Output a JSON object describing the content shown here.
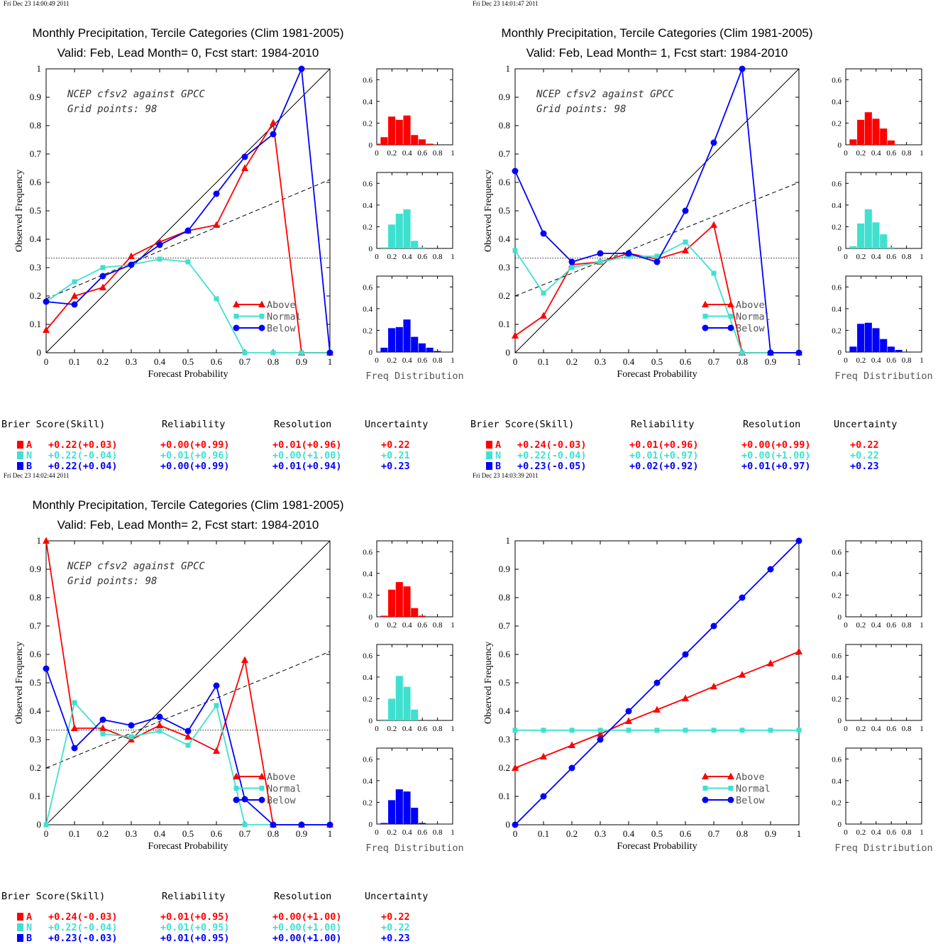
{
  "panels": [
    {
      "timestamp": "Fri Dec 23 14:00:49 2011",
      "title1": "Monthly Precipitation, Tercile Categories (Clim 1981-2005)",
      "title2": "Valid: Feb, Lead Month= 0, Fcst start: 1984-2010",
      "annotation1": "NCEP cfsv2 against GPCC",
      "annotation2": "Grid points:   98",
      "xlabel": "Forecast Probability",
      "ylabel": "Observed Frequency",
      "hist_label": "Freq Distribution",
      "legend": [
        "Above",
        "Normal",
        "Below"
      ],
      "reliability": {
        "x": [
          0,
          0.1,
          0.2,
          0.3,
          0.4,
          0.5,
          0.6,
          0.7,
          0.8,
          0.9,
          1.0
        ],
        "above": [
          0.08,
          0.2,
          0.23,
          0.34,
          0.39,
          0.43,
          0.45,
          0.65,
          0.81,
          0.0,
          0.0
        ],
        "normal": [
          0.18,
          0.25,
          0.3,
          0.31,
          0.33,
          0.32,
          0.19,
          0.0,
          0.0,
          0.0,
          0.0
        ],
        "below": [
          0.18,
          0.17,
          0.27,
          0.31,
          0.38,
          0.43,
          0.56,
          0.69,
          0.77,
          1.0,
          0.0
        ],
        "fit": [
          0.19,
          0.61
        ]
      },
      "histograms": {
        "above": [
          0.01,
          0.07,
          0.26,
          0.23,
          0.27,
          0.09,
          0.05,
          0.01,
          0,
          0,
          0
        ],
        "normal": [
          0.0,
          0.01,
          0.22,
          0.32,
          0.36,
          0.07,
          0.01,
          0,
          0,
          0,
          0
        ],
        "below": [
          0.0,
          0.04,
          0.22,
          0.23,
          0.3,
          0.14,
          0.08,
          0.04,
          0.01,
          0,
          0
        ]
      },
      "stats": {
        "headers": [
          "Brier Score(Skill)",
          "Reliability",
          "Resolution",
          "Uncertainty"
        ],
        "rows": [
          {
            "tag": "A",
            "brier": "+0.22(+0.03)",
            "rel": "+0.00(+0.99)",
            "res": "+0.01(+0.96)",
            "unc": "+0.22"
          },
          {
            "tag": "N",
            "brier": "+0.22(-0.04)",
            "rel": "+0.01(+0.96)",
            "res": "+0.00(+1.00)",
            "unc": "+0.21"
          },
          {
            "tag": "B",
            "brier": "+0.22(+0.04)",
            "rel": "+0.00(+0.99)",
            "res": "+0.01(+0.94)",
            "unc": "+0.23"
          }
        ]
      }
    },
    {
      "timestamp": "Fri Dec 23 14:01:47 2011",
      "title1": "Monthly Precipitation, Tercile Categories (Clim 1981-2005)",
      "title2": "Valid: Feb, Lead Month= 1, Fcst start: 1984-2010",
      "annotation1": "NCEP cfsv2 against GPCC",
      "annotation2": "Grid points:   98",
      "xlabel": "Forecast Probability",
      "ylabel": "Observed Frequency",
      "hist_label": "Freq Distribution",
      "legend": [
        "Above",
        "Normal",
        "Below"
      ],
      "reliability": {
        "x": [
          0,
          0.1,
          0.2,
          0.3,
          0.4,
          0.5,
          0.6,
          0.7,
          0.8,
          0.9,
          1.0
        ],
        "above": [
          0.06,
          0.13,
          0.31,
          0.32,
          0.35,
          0.33,
          0.36,
          0.45,
          0.0,
          0.0,
          0.0
        ],
        "normal": [
          0.36,
          0.21,
          0.3,
          0.32,
          0.34,
          0.34,
          0.39,
          0.28,
          0.0,
          0.0,
          0.0
        ],
        "below": [
          0.64,
          0.42,
          0.32,
          0.35,
          0.35,
          0.32,
          0.5,
          0.74,
          1.0,
          0.0,
          0.0
        ],
        "fit": [
          0.2,
          0.6
        ]
      },
      "histograms": {
        "above": [
          0.0,
          0.05,
          0.23,
          0.3,
          0.24,
          0.15,
          0.04,
          0.0,
          0,
          0,
          0
        ],
        "normal": [
          0.0,
          0.02,
          0.23,
          0.36,
          0.24,
          0.13,
          0.01,
          0,
          0,
          0,
          0
        ],
        "below": [
          0.0,
          0.05,
          0.26,
          0.27,
          0.22,
          0.12,
          0.05,
          0.02,
          0,
          0,
          0
        ]
      },
      "stats": {
        "headers": [
          "Brier Score(Skill)",
          "Reliability",
          "Resolution",
          "Uncertainty"
        ],
        "rows": [
          {
            "tag": "A",
            "brier": "+0.24(-0.03)",
            "rel": "+0.01(+0.96)",
            "res": "+0.00(+0.99)",
            "unc": "+0.22"
          },
          {
            "tag": "N",
            "brier": "+0.22(-0.04)",
            "rel": "+0.01(+0.97)",
            "res": "+0.00(+1.00)",
            "unc": "+0.22"
          },
          {
            "tag": "B",
            "brier": "+0.23(-0.05)",
            "rel": "+0.02(+0.92)",
            "res": "+0.01(+0.97)",
            "unc": "+0.23"
          }
        ]
      }
    },
    {
      "timestamp": "Fri Dec 23 14:02:44 2011",
      "title1": "Monthly Precipitation, Tercile Categories (Clim 1981-2005)",
      "title2": "Valid: Feb, Lead Month= 2, Fcst start: 1984-2010",
      "annotation1": "NCEP cfsv2 against GPCC",
      "annotation2": "Grid points:   98",
      "xlabel": "Forecast Probability",
      "ylabel": "Observed Frequency",
      "hist_label": "Freq Distribution",
      "legend": [
        "Above",
        "Normal",
        "Below"
      ],
      "reliability": {
        "x": [
          0,
          0.1,
          0.2,
          0.3,
          0.4,
          0.5,
          0.6,
          0.7,
          0.8,
          0.9,
          1.0
        ],
        "above": [
          1.0,
          0.34,
          0.34,
          0.3,
          0.35,
          0.31,
          0.26,
          0.58,
          0.0,
          0.0,
          0.0
        ],
        "normal": [
          0.0,
          0.43,
          0.32,
          0.31,
          0.33,
          0.28,
          0.42,
          0.0,
          0.0,
          0.0,
          0.0
        ],
        "below": [
          0.55,
          0.27,
          0.37,
          0.35,
          0.38,
          0.33,
          0.49,
          0.09,
          0.0,
          0.0,
          0.0
        ],
        "fit": [
          0.2,
          0.61
        ]
      },
      "histograms": {
        "above": [
          0.0,
          0.01,
          0.25,
          0.32,
          0.28,
          0.08,
          0.01,
          0.0,
          0,
          0,
          0
        ],
        "normal": [
          0.0,
          0.01,
          0.2,
          0.41,
          0.31,
          0.1,
          0.0,
          0,
          0,
          0,
          0
        ],
        "below": [
          0.0,
          0.01,
          0.22,
          0.32,
          0.3,
          0.15,
          0.01,
          0.0,
          0,
          0,
          0
        ]
      },
      "stats": {
        "headers": [
          "Brier Score(Skill)",
          "Reliability",
          "Resolution",
          "Uncertainty"
        ],
        "rows": [
          {
            "tag": "A",
            "brier": "+0.24(-0.03)",
            "rel": "+0.01(+0.95)",
            "res": "+0.00(+1.00)",
            "unc": "+0.22"
          },
          {
            "tag": "N",
            "brier": "+0.22(-0.04)",
            "rel": "+0.01(+0.95)",
            "res": "+0.00(+1.00)",
            "unc": "+0.22"
          },
          {
            "tag": "B",
            "brier": "+0.23(-0.03)",
            "rel": "+0.01(+0.95)",
            "res": "+0.00(+1.00)",
            "unc": "+0.23"
          }
        ]
      }
    },
    {
      "timestamp": "Fri Dec 23 14:03:39 2011",
      "title1": "",
      "title2": "",
      "annotation1": "",
      "annotation2": "",
      "xlabel": "Forecast Probability",
      "ylabel": "Observed Frequency",
      "hist_label": "Freq Distribution",
      "legend": [
        "Above",
        "Normal",
        "Below"
      ],
      "reliability": {
        "x": [
          0,
          0.1,
          0.2,
          0.3,
          0.4,
          0.5,
          0.6,
          0.7,
          0.8,
          0.9,
          1.0
        ],
        "above": [
          0.2,
          0.24,
          0.28,
          0.32,
          0.365,
          0.405,
          0.445,
          0.487,
          0.528,
          0.568,
          0.61
        ],
        "normal": [
          0.333,
          0.333,
          0.333,
          0.333,
          0.333,
          0.333,
          0.333,
          0.333,
          0.333,
          0.333,
          0.333
        ],
        "below": [
          0.0,
          0.1,
          0.2,
          0.3,
          0.4,
          0.5,
          0.6,
          0.7,
          0.8,
          0.9,
          1.0
        ],
        "fit": null,
        "diagonal": false,
        "climatology": false
      },
      "histograms": {
        "above": [],
        "normal": [],
        "below": []
      },
      "stats": null
    }
  ],
  "chart_data": [
    {
      "type": "line",
      "title": "Monthly Precipitation, Tercile Categories (Clim 1981-2005) / Valid: Feb, Lead Month= 0, Fcst start: 1984-2010",
      "xlabel": "Forecast Probability",
      "ylabel": "Observed Frequency",
      "xlim": [
        0,
        1
      ],
      "ylim": [
        0,
        1
      ],
      "x": [
        0,
        0.1,
        0.2,
        0.3,
        0.4,
        0.5,
        0.6,
        0.7,
        0.8,
        0.9,
        1.0
      ],
      "series": [
        {
          "name": "Above",
          "values": [
            0.08,
            0.2,
            0.23,
            0.34,
            0.39,
            0.43,
            0.45,
            0.65,
            0.81,
            0.0,
            0.0
          ]
        },
        {
          "name": "Normal",
          "values": [
            0.18,
            0.25,
            0.3,
            0.31,
            0.33,
            0.32,
            0.19,
            0.0,
            0.0,
            0.0,
            0.0
          ]
        },
        {
          "name": "Below",
          "values": [
            0.18,
            0.17,
            0.27,
            0.31,
            0.38,
            0.43,
            0.56,
            0.69,
            0.77,
            1.0,
            0.0
          ]
        }
      ]
    },
    {
      "type": "line",
      "title": "Monthly Precipitation, Tercile Categories (Clim 1981-2005) / Valid: Feb, Lead Month= 1, Fcst start: 1984-2010",
      "xlabel": "Forecast Probability",
      "ylabel": "Observed Frequency",
      "xlim": [
        0,
        1
      ],
      "ylim": [
        0,
        1
      ],
      "x": [
        0,
        0.1,
        0.2,
        0.3,
        0.4,
        0.5,
        0.6,
        0.7,
        0.8,
        0.9,
        1.0
      ],
      "series": [
        {
          "name": "Above",
          "values": [
            0.06,
            0.13,
            0.31,
            0.32,
            0.35,
            0.33,
            0.36,
            0.45,
            0.0,
            0.0,
            0.0
          ]
        },
        {
          "name": "Normal",
          "values": [
            0.36,
            0.21,
            0.3,
            0.32,
            0.34,
            0.34,
            0.39,
            0.28,
            0.0,
            0.0,
            0.0
          ]
        },
        {
          "name": "Below",
          "values": [
            0.64,
            0.42,
            0.32,
            0.35,
            0.35,
            0.32,
            0.5,
            0.74,
            1.0,
            0.0,
            0.0
          ]
        }
      ]
    },
    {
      "type": "line",
      "title": "Monthly Precipitation, Tercile Categories (Clim 1981-2005) / Valid: Feb, Lead Month= 2, Fcst start: 1984-2010",
      "xlabel": "Forecast Probability",
      "ylabel": "Observed Frequency",
      "xlim": [
        0,
        1
      ],
      "ylim": [
        0,
        1
      ],
      "x": [
        0,
        0.1,
        0.2,
        0.3,
        0.4,
        0.5,
        0.6,
        0.7,
        0.8,
        0.9,
        1.0
      ],
      "series": [
        {
          "name": "Above",
          "values": [
            1.0,
            0.34,
            0.34,
            0.3,
            0.35,
            0.31,
            0.26,
            0.58,
            0.0,
            0.0,
            0.0
          ]
        },
        {
          "name": "Normal",
          "values": [
            0.0,
            0.43,
            0.32,
            0.31,
            0.33,
            0.28,
            0.42,
            0.0,
            0.0,
            0.0,
            0.0
          ]
        },
        {
          "name": "Below",
          "values": [
            0.55,
            0.27,
            0.37,
            0.35,
            0.38,
            0.33,
            0.49,
            0.09,
            0.0,
            0.0,
            0.0
          ]
        }
      ]
    },
    {
      "type": "line",
      "title": "",
      "xlabel": "Forecast Probability",
      "ylabel": "Observed Frequency",
      "xlim": [
        0,
        1
      ],
      "ylim": [
        0,
        1
      ],
      "x": [
        0,
        0.1,
        0.2,
        0.3,
        0.4,
        0.5,
        0.6,
        0.7,
        0.8,
        0.9,
        1.0
      ],
      "series": [
        {
          "name": "Above",
          "values": [
            0.2,
            0.24,
            0.28,
            0.32,
            0.365,
            0.405,
            0.445,
            0.487,
            0.528,
            0.568,
            0.61
          ]
        },
        {
          "name": "Normal",
          "values": [
            0.333,
            0.333,
            0.333,
            0.333,
            0.333,
            0.333,
            0.333,
            0.333,
            0.333,
            0.333,
            0.333
          ]
        },
        {
          "name": "Below",
          "values": [
            0.0,
            0.1,
            0.2,
            0.3,
            0.4,
            0.5,
            0.6,
            0.7,
            0.8,
            0.9,
            1.0
          ]
        }
      ]
    }
  ],
  "colors": {
    "above": "#ff0000",
    "normal": "#40e0d0",
    "below": "#0000ff",
    "axis": "#000000"
  }
}
